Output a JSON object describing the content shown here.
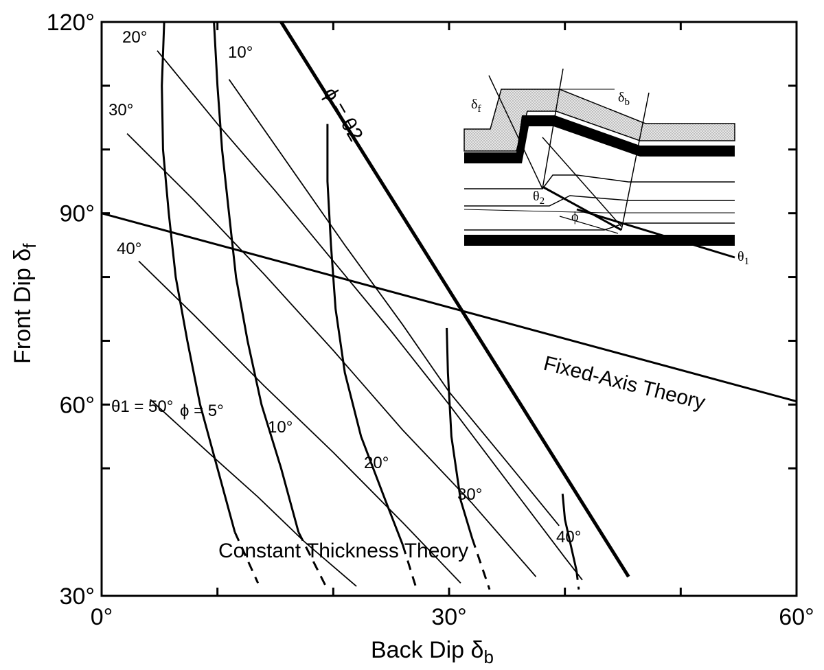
{
  "chart_data": {
    "type": "line",
    "xlabel": "Back Dip",
    "xlabel_symbol": "δ",
    "xlabel_sub": "b",
    "ylabel": "Front Dip",
    "ylabel_symbol": "δ",
    "ylabel_sub": "f",
    "xlim": [
      0,
      60
    ],
    "ylim": [
      30,
      120
    ],
    "x_ticks": [
      {
        "value": 0,
        "label": "0°"
      },
      {
        "value": 30,
        "label": "30°"
      },
      {
        "value": 60,
        "label": "60°"
      }
    ],
    "y_ticks": [
      {
        "value": 30,
        "label": "30°"
      },
      {
        "value": 60,
        "label": "60°"
      },
      {
        "value": 90,
        "label": "90°"
      },
      {
        "value": 120,
        "label": "120°"
      }
    ],
    "minor_x_ticks": [
      10,
      20,
      40,
      50
    ],
    "minor_y_ticks": [
      50,
      70,
      80,
      100,
      110
    ],
    "theta1_curves": [
      {
        "label": "θ1 = 50°",
        "points": [
          [
            4.2,
            60.8
          ],
          [
            9.5,
            52
          ],
          [
            13.5,
            45.5
          ],
          [
            17.5,
            38.5
          ],
          [
            22,
            31.5
          ]
        ]
      },
      {
        "label": "40°",
        "points": [
          [
            3.2,
            82.5
          ],
          [
            8,
            74
          ],
          [
            14,
            63
          ],
          [
            20,
            52.5
          ],
          [
            26,
            41.5
          ],
          [
            31,
            32
          ]
        ]
      },
      {
        "label": "30°",
        "points": [
          [
            2.2,
            102.5
          ],
          [
            8,
            92
          ],
          [
            14,
            80.5
          ],
          [
            20,
            68.5
          ],
          [
            26,
            56
          ],
          [
            32,
            44.5
          ],
          [
            37.5,
            33
          ]
        ]
      },
      {
        "label": "20°",
        "points": [
          [
            4.8,
            115.5
          ],
          [
            10,
            104
          ],
          [
            15,
            93.5
          ],
          [
            20,
            82.5
          ],
          [
            25,
            71.5
          ],
          [
            30,
            60
          ],
          [
            35,
            48
          ],
          [
            40,
            36
          ],
          [
            41.5,
            32.5
          ]
        ]
      },
      {
        "label": "10°",
        "points": [
          [
            11,
            111
          ],
          [
            16,
            98
          ],
          [
            21,
            85
          ],
          [
            26,
            72.5
          ],
          [
            30,
            62
          ],
          [
            35,
            51
          ],
          [
            39.5,
            41
          ]
        ]
      }
    ],
    "phi_curves": [
      {
        "label": "ϕ = 5°",
        "points": [
          [
            5.4,
            120
          ],
          [
            5.2,
            110
          ],
          [
            5.3,
            100
          ],
          [
            5.8,
            90
          ],
          [
            6.4,
            80
          ],
          [
            7.4,
            70
          ],
          [
            8.5,
            60
          ],
          [
            10,
            50
          ],
          [
            11.5,
            40
          ],
          [
            13.5,
            32
          ]
        ]
      },
      {
        "label": "10°",
        "points": [
          [
            9.7,
            120
          ],
          [
            10,
            110
          ],
          [
            10.4,
            100
          ],
          [
            11,
            90
          ],
          [
            11.6,
            80
          ],
          [
            12.6,
            70
          ],
          [
            13.8,
            60
          ],
          [
            15.5,
            50
          ],
          [
            17,
            40
          ],
          [
            19.5,
            31
          ]
        ]
      },
      {
        "label": "20°",
        "points": [
          [
            19.5,
            104
          ],
          [
            19.5,
            95
          ],
          [
            19.8,
            85
          ],
          [
            20.2,
            75
          ],
          [
            21,
            65
          ],
          [
            22.4,
            55
          ],
          [
            24.5,
            45
          ],
          [
            26,
            38
          ],
          [
            27.2,
            31
          ]
        ]
      },
      {
        "label": "30°",
        "points": [
          [
            29.8,
            72
          ],
          [
            29.9,
            65
          ],
          [
            30.2,
            55
          ],
          [
            31,
            45
          ],
          [
            32,
            39
          ],
          [
            33.5,
            31
          ]
        ]
      },
      {
        "label": "40°",
        "points": [
          [
            39.8,
            46
          ],
          [
            40,
            42
          ],
          [
            40.5,
            38
          ],
          [
            41,
            34
          ],
          [
            41.2,
            31
          ]
        ]
      }
    ],
    "fixed_axis_line": {
      "label": "Fixed-Axis Theory",
      "points": [
        [
          0,
          90
        ],
        [
          60,
          60.5
        ]
      ]
    },
    "phi_theta2_line": {
      "label": "ϕ = θ2",
      "points": [
        [
          15.5,
          120
        ],
        [
          45.5,
          33
        ]
      ]
    },
    "constant_thickness_label": "Constant Thickness Theory"
  },
  "inset": {
    "delta_f": "δ",
    "delta_f_sub": "f",
    "delta_b": "δ",
    "delta_b_sub": "b",
    "theta2": "θ",
    "theta2_sub": "2",
    "phi": "ϕ",
    "theta1": "θ",
    "theta1_sub": "1"
  }
}
